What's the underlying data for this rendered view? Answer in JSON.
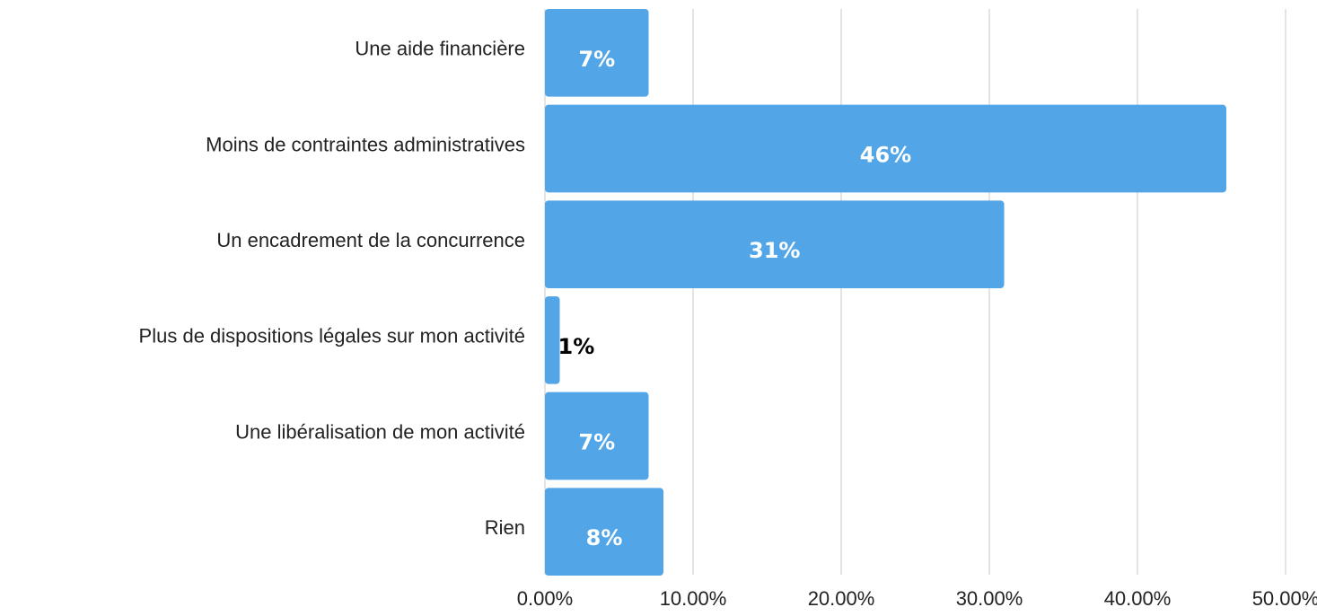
{
  "chart_data": {
    "type": "barh",
    "categories": [
      "Une aide financière",
      "Moins de contraintes administratives",
      "Un encadrement de la concurrence",
      "Plus de dispositions légales sur mon activité",
      "Une libéralisation de mon activité",
      "Rien"
    ],
    "values": [
      7,
      46,
      31,
      1,
      7,
      8
    ],
    "value_labels": [
      "7%",
      "46%",
      "31%",
      "1%",
      "7%",
      "8%"
    ],
    "color": "#52a5e6",
    "xlim": [
      0,
      50
    ],
    "xticks": [
      {
        "value": 0,
        "label": "0.00%"
      },
      {
        "value": 10,
        "label": "10.00%"
      },
      {
        "value": 20,
        "label": "20.00%"
      },
      {
        "value": 30,
        "label": "30.00%"
      },
      {
        "value": 40,
        "label": "40.00%"
      },
      {
        "value": 50,
        "label": "50.00%"
      }
    ],
    "grid": true
  }
}
